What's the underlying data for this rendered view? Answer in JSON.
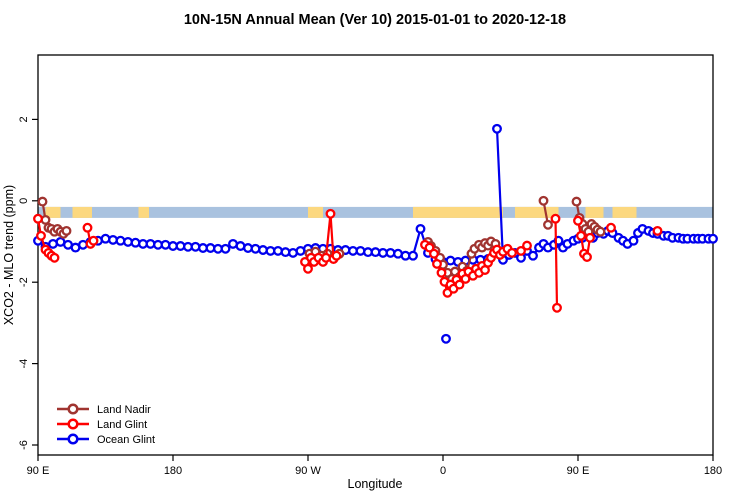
{
  "window": {
    "title": "10N-15N Annual Mean (Ver 10)   2015-01-01 to 2020-12-18"
  },
  "chart_data": {
    "type": "line",
    "title": "10N-15N Annual Mean (Ver 10)   2015-01-01 to 2020-12-18",
    "xlabel": "Longitude",
    "ylabel": "XCO2 - MLO trend (ppm)",
    "x_unit": "degrees longitude, unwrapped eastward starting at 90E",
    "xlim": [
      90,
      540
    ],
    "ylim": [
      -6.25,
      3.58
    ],
    "x_ticks": [
      {
        "value": 90,
        "label": "90 E"
      },
      {
        "value": 180,
        "label": "180"
      },
      {
        "value": 270,
        "label": "90 W"
      },
      {
        "value": 360,
        "label": "0"
      },
      {
        "value": 450,
        "label": "90 E"
      },
      {
        "value": 540,
        "label": "180"
      }
    ],
    "y_ticks": [
      2,
      0,
      -2,
      -4,
      -6
    ],
    "grid": false,
    "map_band": {
      "description": "latitude-band strip map overlay, ocean blue with tan land segments",
      "value_top": -0.15,
      "value_bottom": -0.42,
      "ocean_color": "#a9c2df",
      "land_color": "#fcd87f",
      "land_segments": [
        [
          95,
          105
        ],
        [
          113,
          126
        ],
        [
          157,
          164
        ],
        [
          270,
          280
        ],
        [
          340,
          400
        ],
        [
          408,
          437
        ],
        [
          455,
          467
        ],
        [
          473,
          489
        ]
      ]
    },
    "legend": {
      "position": "bottom-left",
      "entries": [
        "Land Nadir",
        "Land Glint",
        "Ocean Glint"
      ]
    },
    "series": [
      {
        "name": "Land Nadir",
        "color": "#a03430",
        "segments": [
          [
            [
              93,
              -0.02
            ],
            [
              95,
              -0.47
            ],
            [
              97,
              -0.66
            ],
            [
              99,
              -0.69
            ],
            [
              101,
              -0.76
            ],
            [
              103,
              -0.69
            ],
            [
              105,
              -0.76
            ],
            [
              107,
              -0.81
            ],
            [
              109,
              -0.74
            ]
          ],
          [
            [
              271,
              -1.3
            ],
            [
              275,
              -1.25
            ],
            [
              279,
              -1.35
            ],
            [
              283,
              -1.3
            ],
            [
              287,
              -1.4
            ],
            [
              291,
              -1.3
            ]
          ],
          [
            [
              350,
              -1.01
            ],
            [
              352,
              -1.11
            ],
            [
              355,
              -1.23
            ],
            [
              358,
              -1.4
            ],
            [
              360,
              -1.57
            ],
            [
              363,
              -1.77
            ],
            [
              366,
              -1.92
            ],
            [
              368,
              -1.74
            ],
            [
              371,
              -1.87
            ],
            [
              373,
              -1.62
            ],
            [
              376,
              -1.72
            ],
            [
              379,
              -1.3
            ],
            [
              381,
              -1.18
            ],
            [
              384,
              -1.08
            ],
            [
              386,
              -1.15
            ],
            [
              388,
              -1.04
            ],
            [
              390,
              -1.1
            ],
            [
              392,
              -1.0
            ],
            [
              395,
              -1.06
            ]
          ],
          [
            [
              427,
              0.0
            ],
            [
              430,
              -0.59
            ]
          ],
          [
            [
              449,
              -0.02
            ],
            [
              451,
              -0.42
            ],
            [
              453,
              -0.57
            ],
            [
              455,
              -0.69
            ],
            [
              457,
              -0.76
            ],
            [
              459,
              -0.57
            ],
            [
              461,
              -0.64
            ],
            [
              463,
              -0.71
            ],
            [
              465,
              -0.76
            ]
          ]
        ],
        "isolated_points": []
      },
      {
        "name": "Land Glint",
        "color": "#fe0000",
        "segments": [
          [
            [
              90,
              -0.44
            ],
            [
              92,
              -0.86
            ],
            [
              95,
              -1.2
            ],
            [
              97,
              -1.28
            ],
            [
              99,
              -1.35
            ],
            [
              101,
              -1.4
            ]
          ],
          [
            [
              123,
              -0.66
            ],
            [
              125,
              -1.06
            ],
            [
              127,
              -0.98
            ]
          ],
          [
            [
              268,
              -1.5
            ],
            [
              270,
              -1.67
            ],
            [
              272,
              -1.4
            ],
            [
              274,
              -1.5
            ],
            [
              277,
              -1.4
            ],
            [
              280,
              -1.5
            ],
            [
              282,
              -1.4
            ],
            [
              285,
              -0.32
            ],
            [
              287,
              -1.43
            ],
            [
              289,
              -1.35
            ]
          ],
          [
            [
              348,
              -1.08
            ],
            [
              351,
              -1.15
            ],
            [
              354,
              -1.3
            ],
            [
              356,
              -1.55
            ],
            [
              359,
              -1.77
            ],
            [
              361,
              -1.99
            ],
            [
              363,
              -2.26
            ],
            [
              365,
              -2.06
            ],
            [
              367,
              -2.16
            ],
            [
              369,
              -1.94
            ],
            [
              371,
              -2.06
            ],
            [
              373,
              -1.79
            ],
            [
              375,
              -1.92
            ],
            [
              377,
              -1.74
            ],
            [
              380,
              -1.84
            ],
            [
              382,
              -1.67
            ],
            [
              384,
              -1.77
            ],
            [
              386,
              -1.6
            ],
            [
              388,
              -1.7
            ],
            [
              390,
              -1.52
            ],
            [
              392,
              -1.4
            ],
            [
              394,
              -1.28
            ],
            [
              396,
              -1.2
            ],
            [
              398,
              -1.33
            ],
            [
              400,
              -1.25
            ],
            [
              403,
              -1.18
            ],
            [
              406,
              -1.28
            ]
          ],
          [
            [
              412,
              -1.23
            ],
            [
              416,
              -1.1
            ]
          ],
          [
            [
              435,
              -0.44
            ],
            [
              436,
              -2.63
            ]
          ],
          [
            [
              450,
              -0.49
            ],
            [
              452,
              -0.86
            ],
            [
              454,
              -1.3
            ],
            [
              456,
              -1.38
            ],
            [
              458,
              -0.91
            ]
          ]
        ],
        "isolated_points": [
          [
            472,
            -0.66
          ],
          [
            503,
            -0.74
          ]
        ]
      },
      {
        "name": "Ocean Glint",
        "color": "#0000ee",
        "segments": [
          [
            [
              90,
              -0.98
            ],
            [
              95,
              -1.13
            ],
            [
              100,
              -1.06
            ],
            [
              105,
              -1.01
            ],
            [
              110,
              -1.08
            ],
            [
              115,
              -1.15
            ],
            [
              120,
              -1.08
            ],
            [
              125,
              -1.01
            ],
            [
              130,
              -0.98
            ],
            [
              135,
              -0.93
            ],
            [
              140,
              -0.96
            ],
            [
              145,
              -0.98
            ],
            [
              150,
              -1.01
            ],
            [
              155,
              -1.03
            ],
            [
              160,
              -1.06
            ],
            [
              165,
              -1.06
            ],
            [
              170,
              -1.08
            ],
            [
              175,
              -1.08
            ],
            [
              180,
              -1.11
            ],
            [
              185,
              -1.11
            ],
            [
              190,
              -1.13
            ],
            [
              195,
              -1.13
            ],
            [
              200,
              -1.16
            ],
            [
              205,
              -1.16
            ],
            [
              210,
              -1.18
            ],
            [
              215,
              -1.18
            ],
            [
              220,
              -1.06
            ],
            [
              225,
              -1.11
            ],
            [
              230,
              -1.16
            ],
            [
              235,
              -1.18
            ],
            [
              240,
              -1.21
            ],
            [
              245,
              -1.23
            ],
            [
              250,
              -1.23
            ],
            [
              255,
              -1.26
            ],
            [
              260,
              -1.28
            ],
            [
              265,
              -1.23
            ],
            [
              270,
              -1.18
            ],
            [
              275,
              -1.16
            ],
            [
              280,
              -1.18
            ],
            [
              285,
              -1.18
            ],
            [
              290,
              -1.21
            ],
            [
              295,
              -1.21
            ],
            [
              300,
              -1.23
            ],
            [
              305,
              -1.23
            ],
            [
              310,
              -1.26
            ],
            [
              315,
              -1.26
            ],
            [
              320,
              -1.28
            ],
            [
              325,
              -1.28
            ],
            [
              330,
              -1.3
            ],
            [
              335,
              -1.35
            ],
            [
              340,
              -1.35
            ],
            [
              345,
              -0.69
            ],
            [
              350,
              -1.28
            ],
            [
              355,
              -1.43
            ],
            [
              360,
              -1.5
            ],
            [
              365,
              -1.47
            ],
            [
              370,
              -1.5
            ],
            [
              375,
              -1.47
            ],
            [
              380,
              -1.45
            ],
            [
              385,
              -1.45
            ],
            [
              390,
              -1.43
            ]
          ],
          [
            [
              396,
              1.77
            ],
            [
              400,
              -1.45
            ],
            [
              404,
              -1.33
            ],
            [
              408,
              -1.28
            ],
            [
              412,
              -1.4
            ],
            [
              416,
              -1.23
            ],
            [
              420,
              -1.35
            ],
            [
              424,
              -1.15
            ],
            [
              427,
              -1.06
            ],
            [
              430,
              -1.15
            ],
            [
              434,
              -1.08
            ],
            [
              437,
              -0.98
            ],
            [
              440,
              -1.15
            ],
            [
              443,
              -1.06
            ],
            [
              447,
              -0.98
            ],
            [
              450,
              -0.93
            ],
            [
              453,
              -0.91
            ],
            [
              457,
              -0.86
            ],
            [
              460,
              -0.91
            ],
            [
              463,
              -0.79
            ],
            [
              467,
              -0.81
            ],
            [
              470,
              -0.74
            ],
            [
              473,
              -0.79
            ],
            [
              477,
              -0.91
            ],
            [
              480,
              -0.98
            ],
            [
              483,
              -1.06
            ],
            [
              487,
              -0.98
            ],
            [
              490,
              -0.79
            ],
            [
              493,
              -0.69
            ],
            [
              497,
              -0.74
            ],
            [
              500,
              -0.79
            ],
            [
              503,
              -0.81
            ],
            [
              507,
              -0.86
            ],
            [
              510,
              -0.86
            ],
            [
              513,
              -0.91
            ],
            [
              517,
              -0.91
            ],
            [
              520,
              -0.93
            ],
            [
              523,
              -0.93
            ],
            [
              527,
              -0.93
            ],
            [
              530,
              -0.93
            ],
            [
              533,
              -0.93
            ],
            [
              537,
              -0.93
            ],
            [
              540,
              -0.93
            ]
          ]
        ],
        "isolated_points": [
          [
            362,
            -3.39
          ]
        ]
      }
    ]
  }
}
